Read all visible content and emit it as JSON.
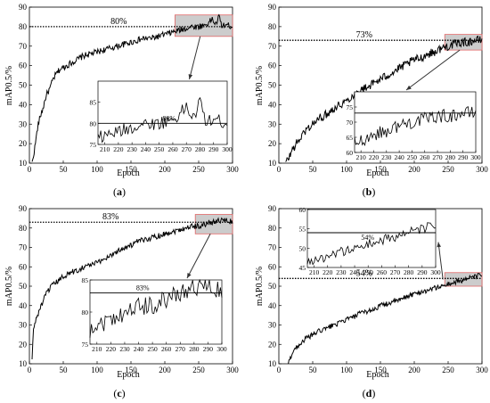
{
  "figure": {
    "panels": [
      {
        "id": "a",
        "label_open": "(",
        "label_letter": "a",
        "label_close": ")",
        "reference_label": "80%",
        "inset_reference_label": "80%"
      },
      {
        "id": "b",
        "label_open": "(",
        "label_letter": "b",
        "label_close": ")",
        "reference_label": "73%",
        "inset_reference_label": ""
      },
      {
        "id": "c",
        "label_open": "(",
        "label_letter": "c",
        "label_close": ")",
        "reference_label": "83%",
        "inset_reference_label": "83%"
      },
      {
        "id": "d",
        "label_open": "(",
        "label_letter": "d",
        "label_close": ")",
        "reference_label": "54%",
        "inset_reference_label": "54%"
      }
    ]
  },
  "colors": {
    "line": "#000000",
    "zoom_box_stroke": "#e06666",
    "zoom_box_fill": "#cccccc",
    "arrow": "#333333"
  },
  "chart_data": [
    {
      "type": "line",
      "panel": "a",
      "title": "",
      "xlabel": "Epoch",
      "ylabel": "mAP0.5/%",
      "xlim": [
        0,
        300
      ],
      "ylim": [
        10,
        90
      ],
      "xticks": [
        0,
        50,
        100,
        150,
        200,
        250,
        300
      ],
      "yticks": [
        10,
        20,
        30,
        40,
        50,
        60,
        70,
        80,
        90
      ],
      "reference_line": 80,
      "highlight_region": {
        "x": [
          215,
          300
        ],
        "y": [
          75,
          86
        ]
      },
      "inset": {
        "xlim": [
          205,
          300
        ],
        "ylim": [
          75,
          90
        ],
        "xticks": [
          210,
          220,
          230,
          240,
          250,
          260,
          270,
          280,
          290,
          300
        ],
        "yticks": [
          75,
          80,
          85
        ]
      },
      "anchors": [
        [
          4,
          10
        ],
        [
          8,
          18
        ],
        [
          12,
          28
        ],
        [
          16,
          34
        ],
        [
          20,
          38
        ],
        [
          25,
          45
        ],
        [
          30,
          48
        ],
        [
          35,
          53
        ],
        [
          40,
          56
        ],
        [
          45,
          58
        ],
        [
          50,
          59
        ],
        [
          60,
          61
        ],
        [
          70,
          63
        ],
        [
          80,
          65
        ],
        [
          90,
          66
        ],
        [
          100,
          67
        ],
        [
          110,
          68
        ],
        [
          120,
          69
        ],
        [
          130,
          70
        ],
        [
          140,
          71
        ],
        [
          150,
          72
        ],
        [
          160,
          73
        ],
        [
          170,
          74
        ],
        [
          180,
          74
        ],
        [
          190,
          75
        ],
        [
          200,
          76
        ],
        [
          210,
          77
        ],
        [
          220,
          78
        ],
        [
          230,
          79
        ],
        [
          240,
          80
        ],
        [
          250,
          80
        ],
        [
          260,
          81
        ],
        [
          265,
          82
        ],
        [
          270,
          84
        ],
        [
          275,
          81
        ],
        [
          280,
          85
        ],
        [
          285,
          80
        ],
        [
          290,
          81
        ],
        [
          300,
          80
        ]
      ],
      "noise": 1.6
    },
    {
      "type": "line",
      "panel": "b",
      "title": "",
      "xlabel": "Epoch",
      "ylabel": "mAP0.5/%",
      "xlim": [
        0,
        300
      ],
      "ylim": [
        10,
        90
      ],
      "xticks": [
        0,
        50,
        100,
        150,
        200,
        250,
        300
      ],
      "yticks": [
        10,
        20,
        30,
        40,
        50,
        60,
        70,
        80,
        90
      ],
      "reference_line": 73,
      "highlight_region": {
        "x": [
          245,
          300
        ],
        "y": [
          68,
          76
        ]
      },
      "inset": {
        "xlim": [
          205,
          300
        ],
        "ylim": [
          60,
          80
        ],
        "xticks": [
          210,
          220,
          230,
          240,
          250,
          260,
          270,
          280,
          290,
          300
        ],
        "yticks": [
          60,
          65,
          70,
          75
        ]
      },
      "anchors": [
        [
          10,
          10
        ],
        [
          15,
          13
        ],
        [
          20,
          17
        ],
        [
          30,
          22
        ],
        [
          40,
          27
        ],
        [
          50,
          30
        ],
        [
          60,
          33
        ],
        [
          70,
          35
        ],
        [
          80,
          38
        ],
        [
          90,
          40
        ],
        [
          100,
          42
        ],
        [
          110,
          45
        ],
        [
          120,
          47
        ],
        [
          130,
          49
        ],
        [
          140,
          51
        ],
        [
          150,
          53
        ],
        [
          160,
          55
        ],
        [
          170,
          57
        ],
        [
          180,
          59
        ],
        [
          190,
          61
        ],
        [
          200,
          63
        ],
        [
          210,
          64
        ],
        [
          220,
          66
        ],
        [
          230,
          67
        ],
        [
          240,
          69
        ],
        [
          250,
          70
        ],
        [
          260,
          71
        ],
        [
          270,
          72
        ],
        [
          280,
          72
        ],
        [
          290,
          73
        ],
        [
          300,
          73
        ]
      ],
      "noise": 2.2
    },
    {
      "type": "line",
      "panel": "c",
      "title": "",
      "xlabel": "Epoch",
      "ylabel": "mAP0.5/%",
      "xlim": [
        0,
        300
      ],
      "ylim": [
        10,
        90
      ],
      "xticks": [
        0,
        50,
        100,
        150,
        200,
        250,
        300
      ],
      "yticks": [
        10,
        20,
        30,
        40,
        50,
        60,
        70,
        80,
        90
      ],
      "reference_line": 83,
      "highlight_region": {
        "x": [
          245,
          300
        ],
        "y": [
          77,
          87
        ]
      },
      "inset": {
        "xlim": [
          205,
          300
        ],
        "ylim": [
          75,
          85
        ],
        "xticks": [
          210,
          220,
          230,
          240,
          250,
          260,
          270,
          280,
          290,
          300
        ],
        "yticks": [
          75,
          80,
          85
        ]
      },
      "anchors": [
        [
          4,
          12
        ],
        [
          6,
          28
        ],
        [
          10,
          33
        ],
        [
          15,
          38
        ],
        [
          20,
          42
        ],
        [
          25,
          46
        ],
        [
          30,
          49
        ],
        [
          40,
          52
        ],
        [
          50,
          55
        ],
        [
          60,
          57
        ],
        [
          70,
          58
        ],
        [
          80,
          60
        ],
        [
          90,
          61
        ],
        [
          100,
          62
        ],
        [
          110,
          64
        ],
        [
          120,
          66
        ],
        [
          130,
          68
        ],
        [
          140,
          70
        ],
        [
          150,
          71
        ],
        [
          160,
          73
        ],
        [
          170,
          74
        ],
        [
          180,
          75
        ],
        [
          190,
          76
        ],
        [
          200,
          77
        ],
        [
          210,
          78
        ],
        [
          220,
          79
        ],
        [
          230,
          80
        ],
        [
          240,
          81
        ],
        [
          250,
          81
        ],
        [
          260,
          82
        ],
        [
          270,
          83
        ],
        [
          280,
          84
        ],
        [
          290,
          84
        ],
        [
          300,
          83
        ]
      ],
      "noise": 1.5
    },
    {
      "type": "line",
      "panel": "d",
      "title": "",
      "xlabel": "Epoch",
      "ylabel": "mAP0.5/%",
      "xlim": [
        0,
        300
      ],
      "ylim": [
        10,
        90
      ],
      "xticks": [
        0,
        50,
        100,
        150,
        200,
        250,
        300
      ],
      "yticks": [
        10,
        20,
        30,
        40,
        50,
        60,
        70,
        80,
        90
      ],
      "reference_line": 54,
      "highlight_region": {
        "x": [
          245,
          300
        ],
        "y": [
          50,
          57
        ]
      },
      "inset": {
        "xlim": [
          205,
          300
        ],
        "ylim": [
          45,
          60
        ],
        "xticks": [
          210,
          220,
          230,
          240,
          250,
          260,
          270,
          280,
          290,
          300
        ],
        "yticks": [
          45,
          50,
          55,
          60
        ]
      },
      "anchors": [
        [
          14,
          10
        ],
        [
          18,
          14
        ],
        [
          22,
          17
        ],
        [
          30,
          20
        ],
        [
          40,
          23
        ],
        [
          50,
          25
        ],
        [
          60,
          27
        ],
        [
          70,
          28
        ],
        [
          80,
          30
        ],
        [
          90,
          31
        ],
        [
          100,
          33
        ],
        [
          110,
          34
        ],
        [
          120,
          36
        ],
        [
          130,
          37
        ],
        [
          140,
          38
        ],
        [
          150,
          40
        ],
        [
          160,
          41
        ],
        [
          170,
          42
        ],
        [
          180,
          43
        ],
        [
          190,
          45
        ],
        [
          200,
          46
        ],
        [
          210,
          47
        ],
        [
          220,
          48
        ],
        [
          230,
          49
        ],
        [
          240,
          50
        ],
        [
          250,
          51
        ],
        [
          260,
          52
        ],
        [
          270,
          53
        ],
        [
          280,
          54
        ],
        [
          290,
          55
        ],
        [
          300,
          56
        ]
      ],
      "noise": 1.3
    }
  ]
}
